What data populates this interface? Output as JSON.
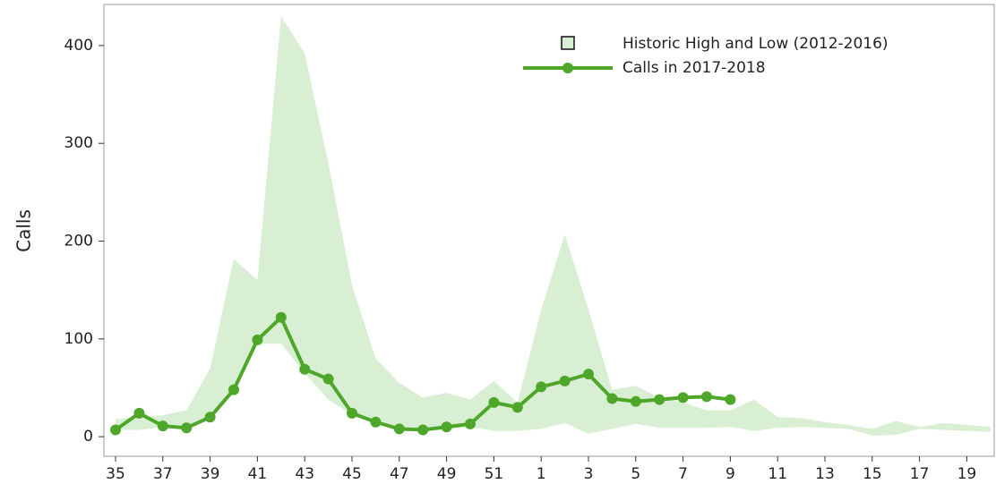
{
  "chart_data": {
    "type": "line",
    "y_label": "Calls",
    "categories": [
      "35",
      null,
      "37",
      null,
      "39",
      null,
      "41",
      null,
      "43",
      null,
      "45",
      null,
      "47",
      null,
      "49",
      null,
      "51",
      null,
      "1",
      null,
      "3",
      null,
      "5",
      null,
      "7",
      null,
      "9",
      null,
      "11",
      null,
      "13",
      null,
      "15",
      null,
      "17",
      null,
      "19",
      null
    ],
    "series": [
      {
        "name": "Historic High and Low (2012-2016)",
        "color": "#d9efd3",
        "high": [
          18,
          20,
          22,
          27,
          70,
          182,
          160,
          430,
          392,
          280,
          155,
          80,
          55,
          40,
          45,
          38,
          57,
          35,
          130,
          207,
          130,
          48,
          52,
          40,
          35,
          27,
          27,
          38,
          20,
          19,
          15,
          12,
          8,
          16,
          10,
          14,
          12,
          10
        ],
        "low": [
          7,
          7,
          10,
          9,
          20,
          45,
          95,
          95,
          65,
          38,
          22,
          14,
          7,
          6,
          8,
          10,
          6,
          6,
          8,
          14,
          3,
          8,
          13,
          9,
          9,
          9,
          10,
          6,
          9,
          10,
          9,
          8,
          1,
          2,
          8,
          7,
          6,
          5
        ]
      },
      {
        "name": "Calls in 2017-2018",
        "color": "#4ea72a",
        "values": [
          7,
          24,
          11,
          9,
          20,
          48,
          99,
          122,
          69,
          59,
          24,
          15,
          8,
          7,
          10,
          13,
          35,
          30,
          51,
          57,
          64,
          39,
          36,
          38,
          40,
          41,
          38,
          null,
          null,
          null,
          null,
          null,
          null,
          null,
          null,
          null,
          null,
          null
        ]
      }
    ],
    "ylim": [
      -20,
      442
    ],
    "yticks": [
      0,
      100,
      200,
      300,
      400
    ]
  }
}
